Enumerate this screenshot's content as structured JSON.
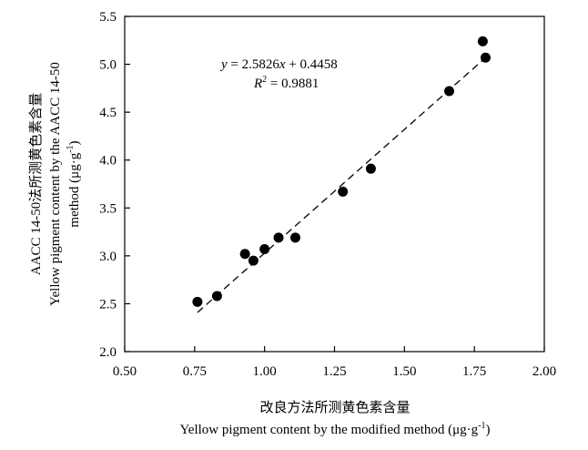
{
  "chart_data": {
    "type": "scatter",
    "title": "",
    "xlabel_cn": "改良方法所测黄色素含量",
    "xlabel_en": "Yellow pigment content by the modified method (μg·g",
    "xlabel_sup": "-1",
    "xlabel_close": ")",
    "ylabel_line1": "AACC 14-50法所测黄色素含量",
    "ylabel_line2": "Yellow pigment content by the AACC 14-50",
    "ylabel_line3": "method (μg·g",
    "ylabel_sup": "-1",
    "ylabel_close": ")",
    "xlim": [
      0.5,
      2.0
    ],
    "ylim": [
      2.0,
      5.5
    ],
    "x_ticks": [
      0.5,
      0.75,
      1.0,
      1.25,
      1.5,
      1.75,
      2.0
    ],
    "x_tick_labels": [
      "0.50",
      "0.75",
      "1.00",
      "1.25",
      "1.50",
      "1.75",
      "2.00"
    ],
    "y_ticks": [
      2.0,
      2.5,
      3.0,
      3.5,
      4.0,
      4.5,
      5.0,
      5.5
    ],
    "y_tick_labels": [
      "2.0",
      "2.5",
      "3.0",
      "3.5",
      "4.0",
      "4.5",
      "5.0",
      "5.5"
    ],
    "grid": false,
    "points": [
      {
        "x": 0.76,
        "y": 2.52
      },
      {
        "x": 0.83,
        "y": 2.58
      },
      {
        "x": 0.93,
        "y": 3.02
      },
      {
        "x": 0.96,
        "y": 2.95
      },
      {
        "x": 1.0,
        "y": 3.07
      },
      {
        "x": 1.05,
        "y": 3.19
      },
      {
        "x": 1.11,
        "y": 3.19
      },
      {
        "x": 1.28,
        "y": 3.67
      },
      {
        "x": 1.38,
        "y": 3.91
      },
      {
        "x": 1.66,
        "y": 4.72
      },
      {
        "x": 1.78,
        "y": 5.24
      },
      {
        "x": 1.79,
        "y": 5.07
      }
    ],
    "regression": {
      "slope": 2.5826,
      "intercept": 0.4458,
      "x_range": [
        0.76,
        1.8
      ],
      "style": "dashed",
      "equation_y": "y",
      "equation_rest": " = 2.5826",
      "equation_x": "x",
      "equation_tail": " + 0.4458",
      "r2_label": "R",
      "r2_sup": "2",
      "r2_value": " = 0.9881"
    }
  }
}
